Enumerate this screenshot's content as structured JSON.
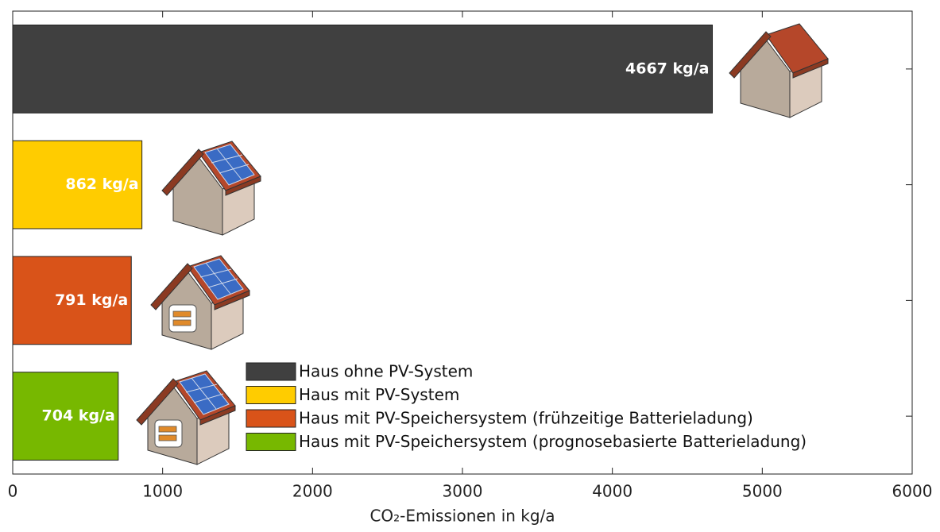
{
  "chart_data": {
    "type": "barh",
    "categories": [
      "Haus ohne PV-System",
      "Haus mit PV-System",
      "Haus mit PV-Speichersystem (frühzeitige Batterieladung)",
      "Haus mit PV-Speichersystem (prognosebasierte Batterieladung)"
    ],
    "values": [
      4667,
      862,
      791,
      704
    ],
    "value_labels": [
      "4667 kg/a",
      "862 kg/a",
      "791 kg/a",
      "704 kg/a"
    ],
    "colors": [
      "#404040",
      "#ffcc00",
      "#d95319",
      "#77b800"
    ],
    "xlabel": "CO₂-Emissionen in kg/a",
    "xlim": [
      0,
      6000
    ],
    "xticks": [
      0,
      1000,
      2000,
      3000,
      4000,
      5000,
      6000
    ],
    "legend": "bottom-right"
  }
}
